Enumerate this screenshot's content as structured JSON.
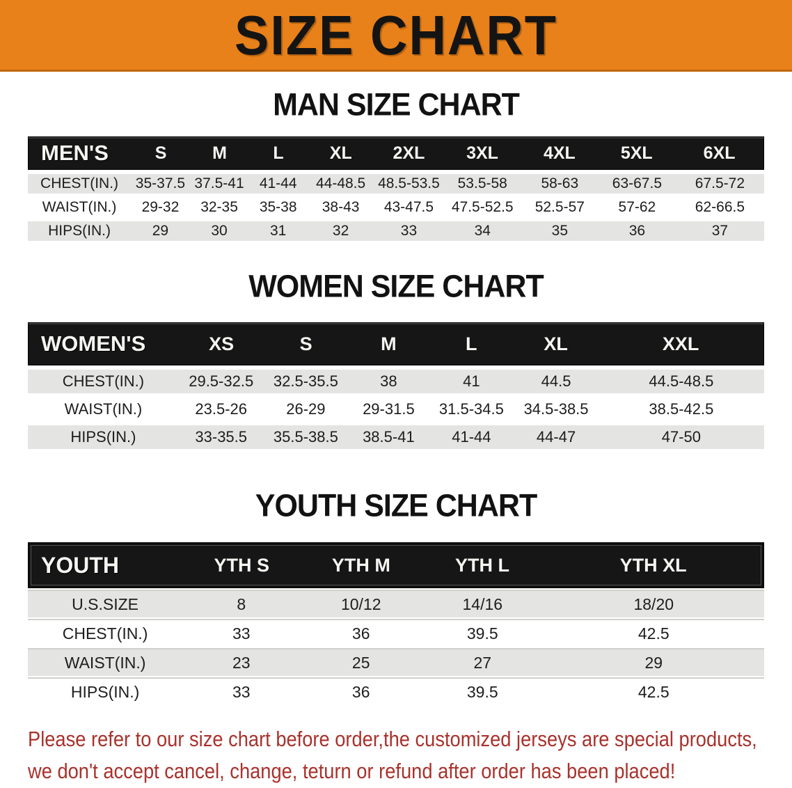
{
  "banner": {
    "title": "SIZE CHART"
  },
  "sections": {
    "men": {
      "heading": "MAN SIZE CHART",
      "corner": "MEN'S",
      "sizes": [
        "S",
        "M",
        "L",
        "XL",
        "2XL",
        "3XL",
        "4XL",
        "5XL",
        "6XL"
      ],
      "rows": [
        {
          "label": "CHEST(IN.)",
          "values": [
            "35-37.5",
            "37.5-41",
            "41-44",
            "44-48.5",
            "48.5-53.5",
            "53.5-58",
            "58-63",
            "63-67.5",
            "67.5-72"
          ]
        },
        {
          "label": "WAIST(IN.)",
          "values": [
            "29-32",
            "32-35",
            "35-38",
            "38-43",
            "43-47.5",
            "47.5-52.5",
            "52.5-57",
            "57-62",
            "62-66.5"
          ]
        },
        {
          "label": "HIPS(IN.)",
          "values": [
            "29",
            "30",
            "31",
            "32",
            "33",
            "34",
            "35",
            "36",
            "37"
          ]
        }
      ]
    },
    "women": {
      "heading": "WOMEN SIZE CHART",
      "corner": "WOMEN'S",
      "sizes": [
        "XS",
        "S",
        "M",
        "L",
        "XL",
        "XXL"
      ],
      "rows": [
        {
          "label": "CHEST(IN.)",
          "values": [
            "29.5-32.5",
            "32.5-35.5",
            "38",
            "41",
            "44.5",
            "44.5-48.5"
          ]
        },
        {
          "label": "WAIST(IN.)",
          "values": [
            "23.5-26",
            "26-29",
            "29-31.5",
            "31.5-34.5",
            "34.5-38.5",
            "38.5-42.5"
          ]
        },
        {
          "label": "HIPS(IN.)",
          "values": [
            "33-35.5",
            "35.5-38.5",
            "38.5-41",
            "41-44",
            "44-47",
            "47-50"
          ]
        }
      ]
    },
    "youth": {
      "heading": "YOUTH SIZE CHART",
      "corner": "YOUTH",
      "sizes": [
        "YTH S",
        "YTH M",
        "YTH L",
        "YTH XL"
      ],
      "rows": [
        {
          "label": "U.S.SIZE",
          "values": [
            "8",
            "10/12",
            "14/16",
            "18/20"
          ]
        },
        {
          "label": "CHEST(IN.)",
          "values": [
            "33",
            "36",
            "39.5",
            "42.5"
          ]
        },
        {
          "label": "WAIST(IN.)",
          "values": [
            "23",
            "25",
            "27",
            "29"
          ]
        },
        {
          "label": "HIPS(IN.)",
          "values": [
            "33",
            "36",
            "39.5",
            "42.5"
          ]
        }
      ]
    }
  },
  "footer": {
    "line1": "Please refer to our size chart before order,the customized jerseys are special products,",
    "line2": "we don't accept cancel, change, teturn or refund after order has been placed!"
  },
  "colors": {
    "banner_orange": "#e8811a",
    "band_black": "#161616",
    "row_gray": "#e4e4e2",
    "footer_red": "#a9322c"
  }
}
